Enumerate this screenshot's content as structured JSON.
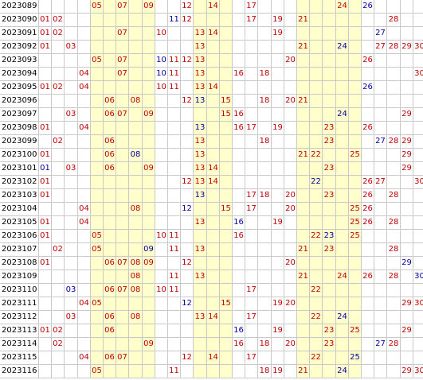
{
  "colors": {
    "red": "#c00000",
    "blue": "#0000a0",
    "band": "#ffffcc",
    "grid": "#c9c9c9"
  },
  "bands": [
    [
      5,
      9
    ],
    [
      13,
      15
    ],
    [
      21,
      25
    ]
  ],
  "rows": [
    {
      "period": "2023089",
      "red": [
        5,
        7,
        9,
        12,
        14,
        17,
        24
      ],
      "blue": [
        26
      ]
    },
    {
      "period": "2023090",
      "red": [
        1,
        2,
        12,
        17,
        19,
        21,
        28
      ],
      "blue": [
        11
      ]
    },
    {
      "period": "2023091",
      "red": [
        1,
        2,
        7,
        10,
        13,
        14,
        19
      ],
      "blue": [
        27
      ]
    },
    {
      "period": "2023092",
      "red": [
        1,
        3,
        13,
        21,
        27,
        28,
        29,
        30
      ],
      "blue": [
        24
      ]
    },
    {
      "period": "2023093",
      "red": [
        5,
        7,
        11,
        12,
        13,
        20,
        26
      ],
      "blue": [
        10
      ]
    },
    {
      "period": "2023094",
      "red": [
        4,
        7,
        11,
        13,
        16,
        18,
        30
      ],
      "blue": [
        10
      ]
    },
    {
      "period": "2023095",
      "red": [
        1,
        2,
        4,
        10,
        11,
        13,
        14
      ],
      "blue": [
        26
      ]
    },
    {
      "period": "2023096",
      "red": [
        6,
        8,
        12,
        15,
        18,
        20,
        21
      ],
      "blue": [
        13
      ]
    },
    {
      "period": "2023097",
      "red": [
        3,
        6,
        7,
        9,
        15,
        16,
        29
      ],
      "blue": [
        24
      ]
    },
    {
      "period": "2023098",
      "red": [
        1,
        4,
        16,
        17,
        19,
        23,
        26
      ],
      "blue": [
        13
      ]
    },
    {
      "period": "2023099",
      "red": [
        2,
        6,
        13,
        18,
        23,
        28,
        29
      ],
      "blue": [
        27
      ]
    },
    {
      "period": "2023100",
      "red": [
        1,
        6,
        13,
        21,
        22,
        25,
        29
      ],
      "blue": [
        8
      ]
    },
    {
      "period": "2023101",
      "red": [
        3,
        6,
        9,
        13,
        14,
        23,
        29
      ],
      "blue": [
        1
      ]
    },
    {
      "period": "2023102",
      "red": [
        1,
        12,
        13,
        14,
        26,
        27,
        30
      ],
      "blue": [
        22
      ]
    },
    {
      "period": "2023103",
      "red": [
        1,
        17,
        18,
        20,
        23,
        26,
        28
      ],
      "blue": [
        13
      ]
    },
    {
      "period": "2023104",
      "red": [
        4,
        8,
        15,
        17,
        20,
        25,
        26
      ],
      "blue": [
        12
      ]
    },
    {
      "period": "2023105",
      "red": [
        1,
        4,
        13,
        19,
        25,
        26,
        28
      ],
      "blue": [
        16
      ]
    },
    {
      "period": "2023106",
      "red": [
        1,
        5,
        10,
        11,
        16,
        22,
        25
      ],
      "blue": [
        23
      ]
    },
    {
      "period": "2023107",
      "red": [
        2,
        5,
        11,
        13,
        21,
        23,
        28
      ],
      "blue": [
        9
      ]
    },
    {
      "period": "2023108",
      "red": [
        1,
        6,
        7,
        8,
        9,
        12,
        20
      ],
      "blue": [
        29
      ]
    },
    {
      "period": "2023109",
      "red": [
        8,
        11,
        13,
        21,
        24,
        26,
        28
      ],
      "blue": [
        30
      ]
    },
    {
      "period": "2023110",
      "red": [
        6,
        7,
        8,
        10,
        11,
        17,
        22
      ],
      "blue": [
        3
      ]
    },
    {
      "period": "2023111",
      "red": [
        4,
        5,
        15,
        19,
        20,
        29,
        30
      ],
      "blue": [
        12
      ]
    },
    {
      "period": "2023112",
      "red": [
        3,
        6,
        8,
        13,
        14,
        17,
        22
      ],
      "blue": [
        24
      ]
    },
    {
      "period": "2023113",
      "red": [
        1,
        2,
        6,
        19,
        23,
        25,
        29
      ],
      "blue": [
        16
      ]
    },
    {
      "period": "2023114",
      "red": [
        2,
        9,
        16,
        18,
        20,
        23,
        28
      ],
      "blue": [
        27
      ]
    },
    {
      "period": "2023115",
      "red": [
        4,
        6,
        7,
        12,
        14,
        17,
        22
      ],
      "blue": [
        25
      ]
    },
    {
      "period": "2023116",
      "red": [
        5,
        11,
        18,
        19,
        21,
        29,
        30
      ],
      "blue": [
        24
      ]
    }
  ]
}
